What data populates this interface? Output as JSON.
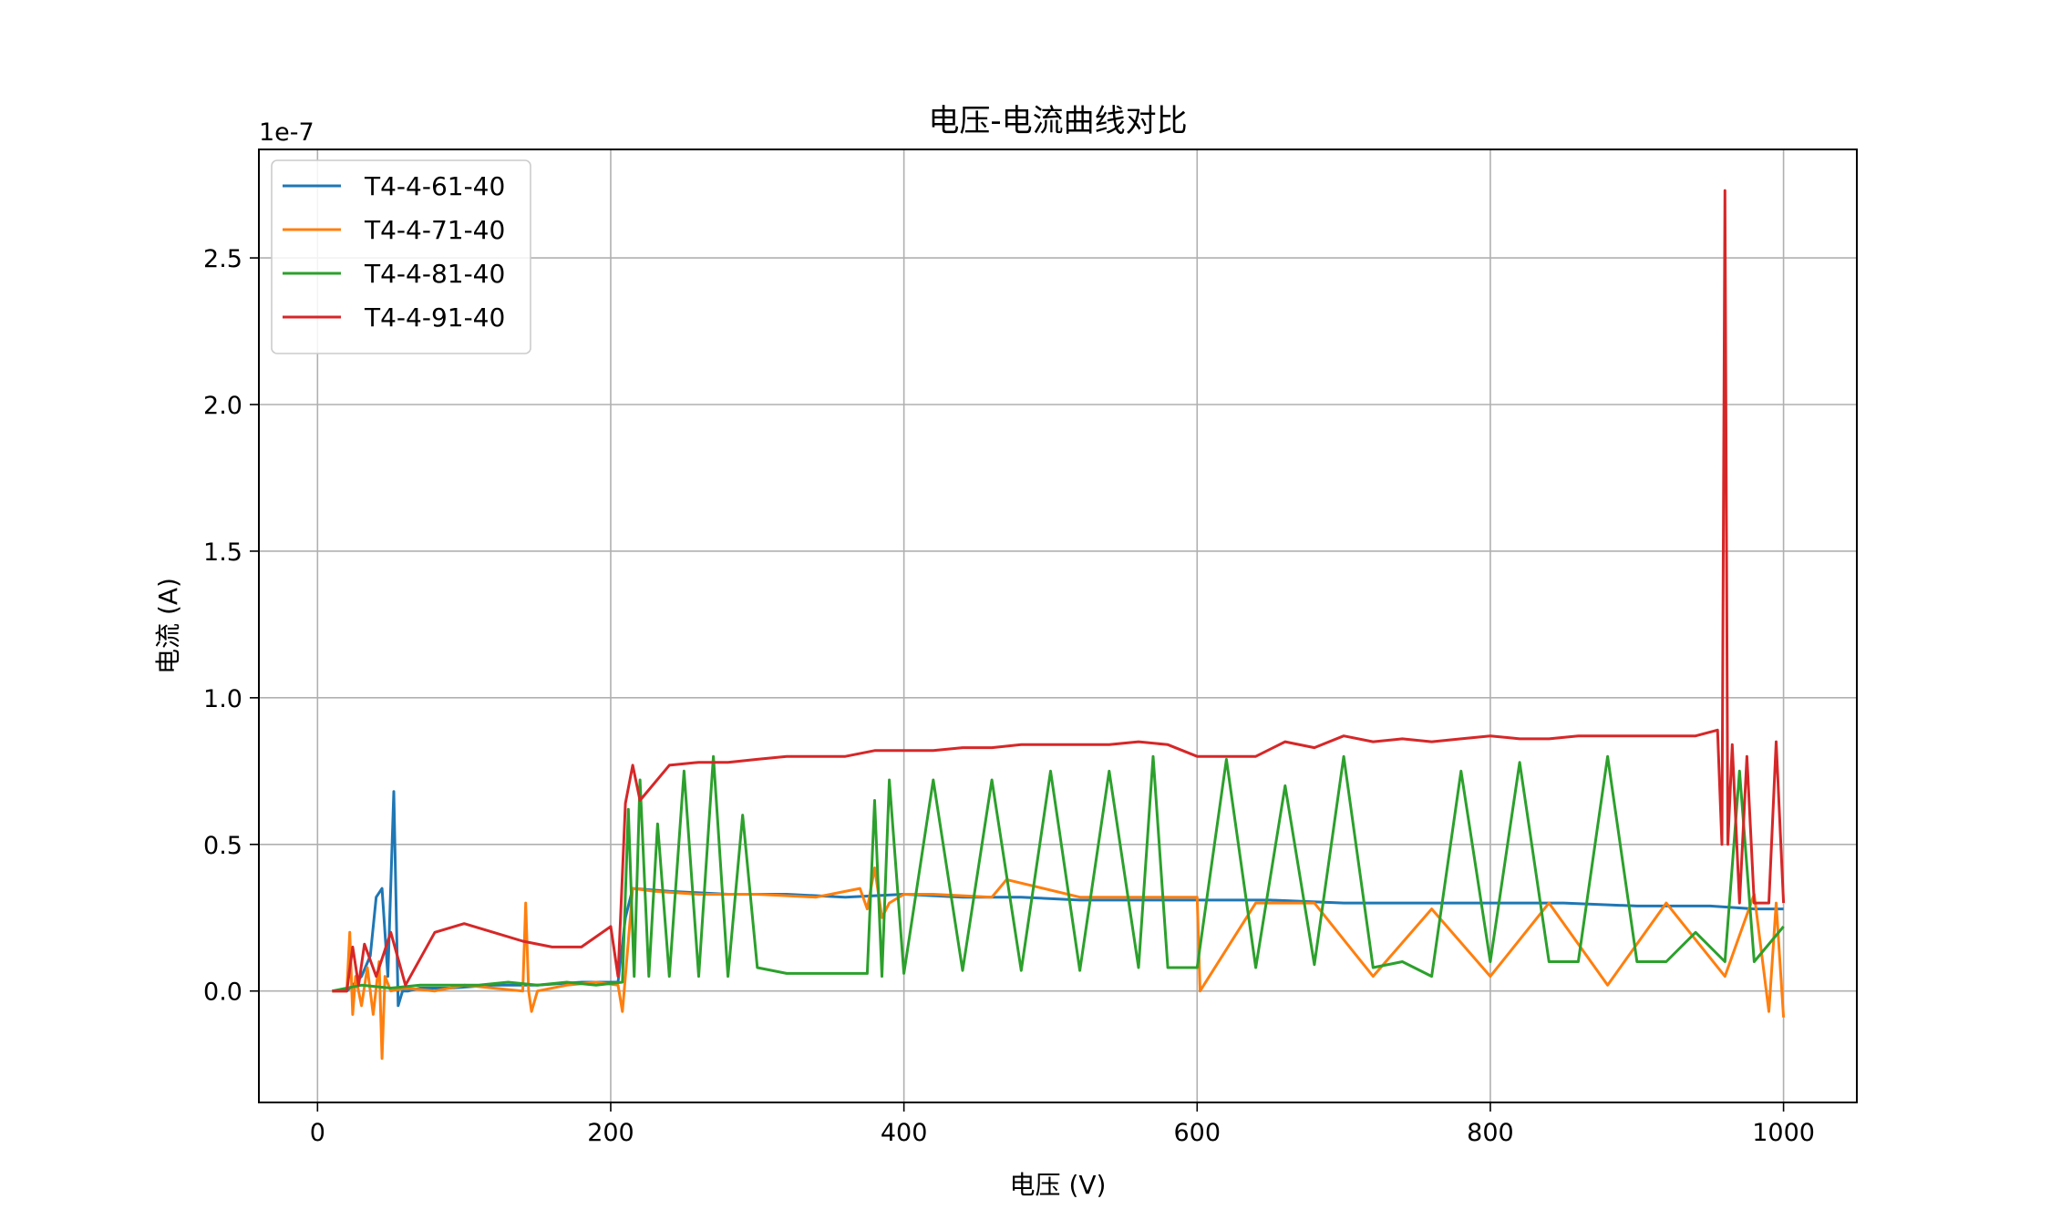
{
  "chart_data": {
    "type": "line",
    "title": "电压-电流曲线对比",
    "xlabel": "电压 (V)",
    "ylabel": "电流 (A)",
    "y_offset_text": "1e-7",
    "y_scale_factor": 1e-07,
    "xlim": [
      -40,
      1050
    ],
    "ylim": [
      -0.38,
      2.87
    ],
    "xticks": [
      0,
      200,
      400,
      600,
      800,
      1000
    ],
    "yticks": [
      0.0,
      0.5,
      1.0,
      1.5,
      2.0,
      2.5
    ],
    "xtick_labels": [
      "0",
      "200",
      "400",
      "600",
      "800",
      "1000"
    ],
    "ytick_labels": [
      "0.0",
      "0.5",
      "1.0",
      "1.5",
      "2.0",
      "2.5"
    ],
    "grid": true,
    "legend_position": "upper-left",
    "x_range": [
      10,
      1000
    ],
    "series": [
      {
        "name": "T4-4-61-40",
        "color": "#1f77b4",
        "x": [
          10,
          20,
          30,
          36,
          40,
          44,
          48,
          52,
          55,
          58,
          62,
          70,
          90,
          120,
          150,
          180,
          205,
          210,
          215,
          240,
          280,
          320,
          360,
          400,
          440,
          480,
          520,
          560,
          600,
          650,
          700,
          750,
          800,
          850,
          900,
          950,
          980,
          1000
        ],
        "values": [
          0.0,
          0.0,
          0.05,
          0.12,
          0.32,
          0.35,
          0.05,
          0.68,
          -0.05,
          0.0,
          0.0,
          0.01,
          0.01,
          0.02,
          0.02,
          0.03,
          0.03,
          0.25,
          0.35,
          0.34,
          0.33,
          0.33,
          0.32,
          0.33,
          0.32,
          0.32,
          0.31,
          0.31,
          0.31,
          0.31,
          0.3,
          0.3,
          0.3,
          0.3,
          0.29,
          0.29,
          0.28,
          0.28
        ]
      },
      {
        "name": "T4-4-71-40",
        "color": "#ff7f0e",
        "x": [
          10,
          20,
          22,
          24,
          26,
          30,
          34,
          38,
          42,
          44,
          46,
          50,
          60,
          80,
          100,
          120,
          140,
          142,
          144,
          146,
          150,
          170,
          190,
          205,
          208,
          210,
          215,
          230,
          260,
          300,
          340,
          370,
          375,
          380,
          385,
          390,
          400,
          420,
          460,
          470,
          520,
          560,
          600,
          602,
          640,
          680,
          720,
          760,
          800,
          840,
          880,
          920,
          960,
          980,
          990,
          995,
          1000
        ],
        "values": [
          0.0,
          0.0,
          0.2,
          -0.08,
          0.05,
          -0.05,
          0.08,
          -0.08,
          0.1,
          -0.23,
          0.05,
          0.0,
          0.01,
          0.0,
          0.02,
          0.01,
          0.0,
          0.3,
          0.0,
          -0.07,
          0.0,
          0.02,
          0.03,
          0.02,
          -0.07,
          0.05,
          0.35,
          0.34,
          0.33,
          0.33,
          0.32,
          0.35,
          0.28,
          0.42,
          0.25,
          0.3,
          0.33,
          0.33,
          0.32,
          0.38,
          0.32,
          0.32,
          0.32,
          0.0,
          0.3,
          0.3,
          0.05,
          0.28,
          0.05,
          0.3,
          0.02,
          0.3,
          0.05,
          0.33,
          -0.07,
          0.3,
          -0.09
        ]
      },
      {
        "name": "T4-4-81-40",
        "color": "#2ca02c",
        "x": [
          10,
          30,
          50,
          70,
          90,
          110,
          130,
          150,
          170,
          190,
          208,
          212,
          216,
          220,
          226,
          232,
          240,
          250,
          260,
          270,
          280,
          290,
          300,
          320,
          340,
          360,
          375,
          380,
          385,
          390,
          400,
          420,
          440,
          460,
          480,
          500,
          520,
          540,
          560,
          570,
          580,
          600,
          620,
          640,
          660,
          680,
          700,
          720,
          740,
          760,
          780,
          800,
          820,
          840,
          860,
          880,
          900,
          920,
          940,
          960,
          970,
          980,
          1000
        ],
        "values": [
          0.0,
          0.02,
          0.01,
          0.02,
          0.02,
          0.02,
          0.03,
          0.02,
          0.03,
          0.02,
          0.03,
          0.62,
          0.05,
          0.72,
          0.05,
          0.57,
          0.05,
          0.75,
          0.05,
          0.8,
          0.05,
          0.6,
          0.08,
          0.06,
          0.06,
          0.06,
          0.06,
          0.65,
          0.05,
          0.72,
          0.06,
          0.72,
          0.07,
          0.72,
          0.07,
          0.75,
          0.07,
          0.75,
          0.08,
          0.8,
          0.08,
          0.08,
          0.79,
          0.08,
          0.7,
          0.09,
          0.8,
          0.08,
          0.1,
          0.05,
          0.75,
          0.1,
          0.78,
          0.1,
          0.1,
          0.8,
          0.1,
          0.1,
          0.2,
          0.1,
          0.75,
          0.1,
          0.22
        ]
      },
      {
        "name": "T4-4-91-40",
        "color": "#d62728",
        "x": [
          10,
          20,
          24,
          28,
          32,
          40,
          50,
          60,
          80,
          100,
          120,
          140,
          160,
          180,
          200,
          205,
          210,
          215,
          220,
          240,
          260,
          280,
          300,
          320,
          340,
          360,
          380,
          400,
          420,
          440,
          460,
          480,
          500,
          520,
          540,
          560,
          580,
          600,
          620,
          640,
          660,
          680,
          700,
          720,
          740,
          760,
          780,
          800,
          820,
          840,
          860,
          880,
          900,
          920,
          940,
          955,
          958,
          960,
          962,
          965,
          970,
          975,
          980,
          990,
          995,
          1000
        ],
        "values": [
          0.0,
          0.0,
          0.15,
          0.02,
          0.16,
          0.05,
          0.2,
          0.02,
          0.2,
          0.23,
          0.2,
          0.17,
          0.15,
          0.15,
          0.22,
          0.05,
          0.64,
          0.77,
          0.65,
          0.77,
          0.78,
          0.78,
          0.79,
          0.8,
          0.8,
          0.8,
          0.82,
          0.82,
          0.82,
          0.83,
          0.83,
          0.84,
          0.84,
          0.84,
          0.84,
          0.85,
          0.84,
          0.8,
          0.8,
          0.8,
          0.85,
          0.83,
          0.87,
          0.85,
          0.86,
          0.85,
          0.86,
          0.87,
          0.86,
          0.86,
          0.87,
          0.87,
          0.87,
          0.87,
          0.87,
          0.89,
          0.5,
          2.73,
          0.5,
          0.84,
          0.3,
          0.8,
          0.3,
          0.3,
          0.85,
          0.3
        ]
      }
    ]
  }
}
